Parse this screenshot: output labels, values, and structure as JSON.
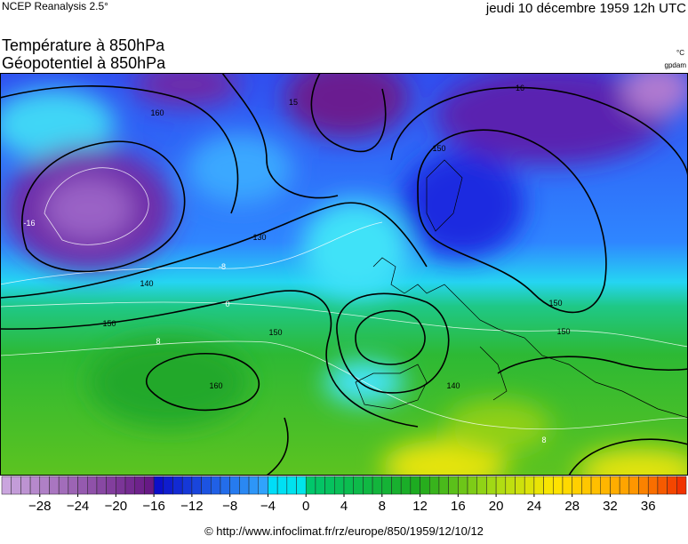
{
  "header": {
    "source": "NCEP Reanalysis 2.5°",
    "date": "jeudi 10 décembre 1959 12h UTC",
    "title_temperature": "Température à 850hPa",
    "title_geopotential": "Géopotentiel à 850hPa",
    "unit_temperature": "°C",
    "unit_geopotential": "gpdam"
  },
  "map": {
    "contour_labels": [
      "160",
      "15",
      "16",
      "150",
      "130",
      "140",
      "150",
      "150",
      "150",
      "150",
      "140",
      "160",
      "-8",
      "0",
      "8",
      "-16",
      "8"
    ]
  },
  "colorbar": {
    "range": [
      -32,
      40
    ],
    "ticks": [
      {
        "value": -28,
        "label": "−28"
      },
      {
        "value": -24,
        "label": "−24"
      },
      {
        "value": -20,
        "label": "−20"
      },
      {
        "value": -16,
        "label": "−16"
      },
      {
        "value": -12,
        "label": "−12"
      },
      {
        "value": -8,
        "label": "−8"
      },
      {
        "value": -4,
        "label": "−4"
      },
      0,
      4,
      8,
      12,
      16,
      20,
      24,
      28,
      32,
      36
    ]
  },
  "footer": "© http://www.infoclimat.fr/rz/europe/850/1959/12/10/12"
}
